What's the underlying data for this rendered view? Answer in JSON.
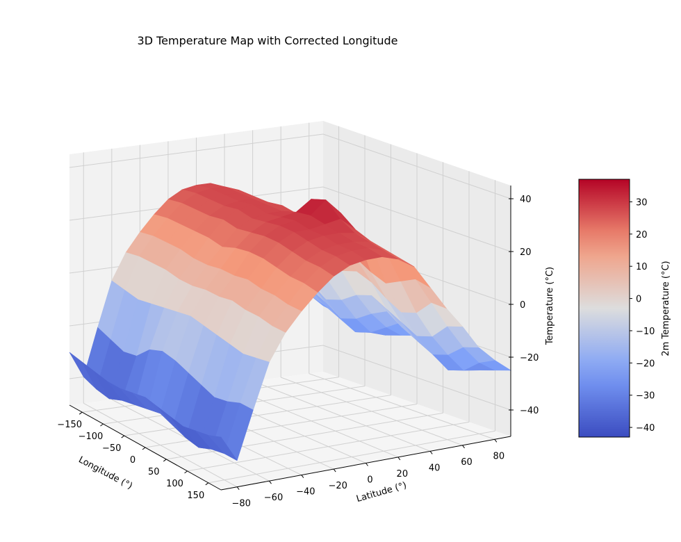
{
  "chart_data": {
    "type": "surface3d",
    "title": "3D Temperature Map with Corrected Longitude",
    "xlabel": "Longitude (°)",
    "ylabel": "Latitude (°)",
    "zlabel": "Temperature (°C)",
    "x_ticks": [
      -150,
      -100,
      -50,
      0,
      50,
      100,
      150
    ],
    "y_ticks": [
      -80,
      -60,
      -40,
      -20,
      0,
      20,
      40,
      60,
      80
    ],
    "z_ticks": [
      -40,
      -20,
      0,
      20,
      40
    ],
    "xlim": [
      -180,
      180
    ],
    "ylim": [
      -90,
      90
    ],
    "zlim": [
      -50,
      45
    ],
    "colormap": "coolwarm",
    "colorbar": {
      "label": "2m Temperature (°C)",
      "range": [
        -43,
        37
      ],
      "ticks": [
        -40,
        -30,
        -20,
        -10,
        0,
        10,
        20,
        30
      ]
    },
    "grid": true,
    "surface": {
      "latitudes": [
        -90,
        -80,
        -70,
        -60,
        -50,
        -40,
        -30,
        -20,
        -10,
        0,
        10,
        20,
        30,
        40,
        50,
        60,
        70,
        80,
        90
      ],
      "longitudes": [
        -180,
        -150,
        -120,
        -90,
        -60,
        -30,
        0,
        30,
        60,
        90,
        120,
        150,
        180
      ],
      "temperatures": [
        [
          -30,
          -31,
          -32,
          -33,
          -33,
          -32,
          -31,
          -32,
          -33,
          -34,
          -33,
          -32,
          -30
        ],
        [
          -40,
          -42,
          -43,
          -41,
          -40,
          -39,
          -38,
          -40,
          -42,
          -43,
          -41,
          -40,
          -40
        ],
        [
          -22,
          -24,
          -26,
          -25,
          -20,
          -18,
          -19,
          -21,
          -23,
          -25,
          -24,
          -22,
          -22
        ],
        [
          -5,
          -6,
          -7,
          -6,
          -5,
          -4,
          -3,
          -4,
          -5,
          -6,
          -7,
          -6,
          -5
        ],
        [
          5,
          6,
          6,
          6,
          5,
          5,
          6,
          6,
          7,
          6,
          6,
          5,
          5
        ],
        [
          12,
          13,
          13,
          13,
          12,
          12,
          13,
          13,
          14,
          13,
          13,
          12,
          12
        ],
        [
          18,
          19,
          19,
          19,
          19,
          18,
          20,
          21,
          21,
          20,
          19,
          19,
          18
        ],
        [
          23,
          24,
          24,
          24,
          25,
          24,
          25,
          26,
          26,
          25,
          24,
          24,
          23
        ],
        [
          26,
          27,
          27,
          27,
          28,
          27,
          28,
          29,
          29,
          28,
          27,
          27,
          26
        ],
        [
          27,
          28,
          28,
          28,
          29,
          28,
          29,
          30,
          29,
          29,
          28,
          28,
          27
        ],
        [
          27,
          28,
          28,
          28,
          28,
          28,
          30,
          31,
          30,
          29,
          28,
          28,
          27
        ],
        [
          25,
          26,
          26,
          26,
          27,
          26,
          34,
          36,
          31,
          28,
          27,
          26,
          25
        ],
        [
          21,
          22,
          22,
          21,
          23,
          22,
          28,
          30,
          26,
          24,
          23,
          22,
          21
        ],
        [
          12,
          14,
          12,
          8,
          10,
          13,
          14,
          12,
          9,
          7,
          10,
          13,
          12
        ],
        [
          3,
          4,
          0,
          -4,
          -3,
          2,
          4,
          2,
          -2,
          -5,
          -3,
          3,
          3
        ],
        [
          -5,
          -6,
          -10,
          -14,
          -12,
          -8,
          -6,
          -9,
          -12,
          -15,
          -13,
          -7,
          -5
        ],
        [
          -14,
          -15,
          -18,
          -22,
          -20,
          -16,
          -13,
          -17,
          -20,
          -23,
          -21,
          -16,
          -14
        ],
        [
          -20,
          -22,
          -25,
          -28,
          -26,
          -22,
          -18,
          -23,
          -26,
          -30,
          -28,
          -23,
          -20
        ],
        [
          -25,
          -26,
          -27,
          -29,
          -28,
          -26,
          -24,
          -26,
          -28,
          -30,
          -29,
          -27,
          -25
        ]
      ]
    }
  }
}
